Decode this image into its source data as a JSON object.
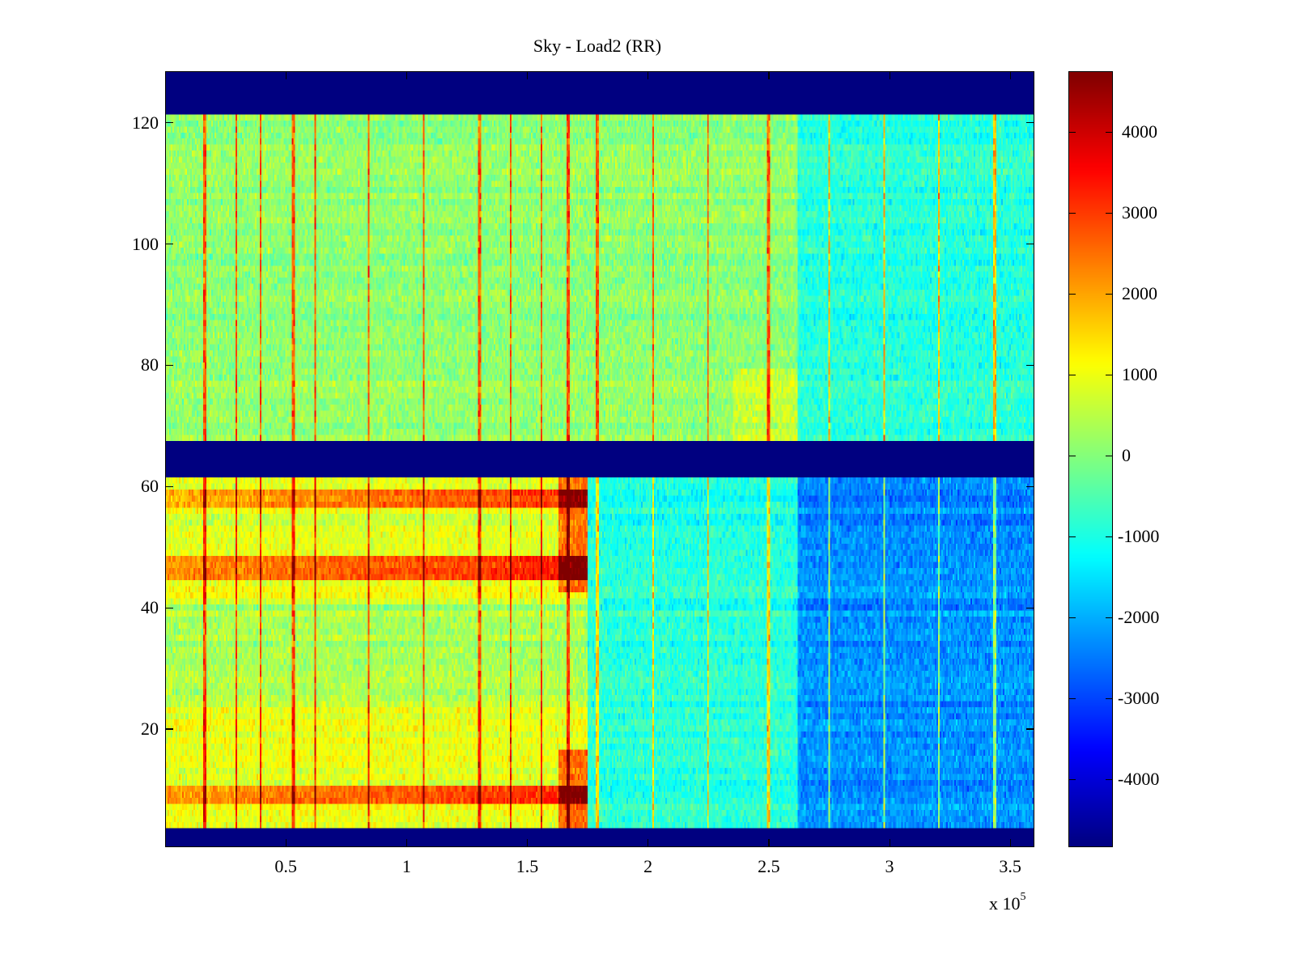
{
  "chart_data": {
    "type": "heatmap",
    "title": "Sky - Load2 (RR)",
    "xlabel": "",
    "ylabel": "",
    "x_multiplier_label": "x 10",
    "x_multiplier_exponent": "5",
    "xlim": [
      0,
      360000
    ],
    "ylim": [
      0.5,
      128.5
    ],
    "xticks": [
      50000,
      100000,
      150000,
      200000,
      250000,
      300000,
      350000
    ],
    "xtick_labels": [
      "0.5",
      "1",
      "1.5",
      "2",
      "2.5",
      "3",
      "3.5"
    ],
    "yticks": [
      20,
      40,
      60,
      80,
      100,
      120
    ],
    "ytick_labels": [
      "20",
      "40",
      "60",
      "80",
      "100",
      "120"
    ],
    "n_rows": 128,
    "colormap": "jet",
    "clim": [
      -4840,
      4750
    ],
    "colorbar": {
      "ticks": [
        4000,
        3000,
        2000,
        1000,
        0,
        -1000,
        -2000,
        -3000,
        -4000
      ],
      "tick_labels": [
        "4000",
        "3000",
        "2000",
        "1000",
        "0",
        "-1000",
        "-2000",
        "-3000",
        "-4000"
      ],
      "location": "right"
    },
    "masked_row_ranges": [
      [
        1,
        3
      ],
      [
        62,
        67
      ],
      [
        122,
        128
      ]
    ],
    "mask_value": -4840,
    "regions": [
      {
        "rows": [
          68,
          121
        ],
        "x_range": [
          0,
          262000
        ],
        "mean_value": 100,
        "note": "mixed green-yellow noise"
      },
      {
        "rows": [
          68,
          121
        ],
        "x_range": [
          262000,
          360000
        ],
        "mean_value": -900,
        "note": "cyan region"
      },
      {
        "rows": [
          4,
          61
        ],
        "x_range": [
          0,
          175000
        ],
        "mean_value": 900,
        "note": "yellow-orange, hot band rows 8-10, 45-48, 57-59"
      },
      {
        "rows": [
          4,
          61
        ],
        "x_range": [
          175000,
          262000
        ],
        "mean_value": -900,
        "note": "cyan"
      },
      {
        "rows": [
          4,
          61
        ],
        "x_range": [
          262000,
          360000
        ],
        "mean_value": -2300,
        "note": "blue, darkest rows 44-58"
      }
    ],
    "spike_columns_x": [
      16000,
      29000,
      39000,
      53000,
      62000,
      84000,
      107000,
      130000,
      143000,
      156000,
      167000,
      179000,
      202000,
      225000,
      250000,
      275000,
      298000,
      321000,
      344000
    ],
    "hot_edge_x": 174000
  }
}
